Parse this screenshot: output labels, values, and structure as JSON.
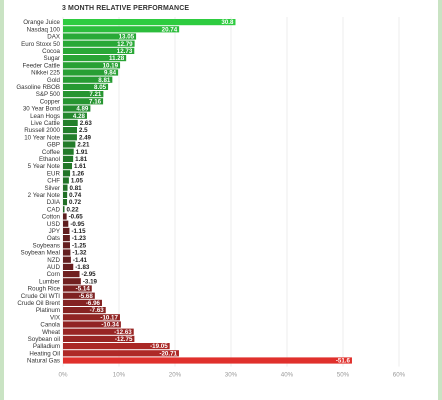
{
  "chart_data": {
    "type": "bar",
    "orientation": "horizontal",
    "title": "3 MONTH RELATIVE PERFORMANCE",
    "categories": [
      "Orange Juice",
      "Nasdaq 100",
      "DAX",
      "Euro Stoxx 50",
      "Cocoa",
      "Sugar",
      "Feeder Cattle",
      "Nikkei 225",
      "Gold",
      "Gasoline RBOB",
      "S&P 500",
      "Copper",
      "30 Year Bond",
      "Lean Hogs",
      "Live Cattle",
      "Russell 2000",
      "10 Year Note",
      "GBP",
      "Coffee",
      "Ethanol",
      "5 Year Note",
      "EUR",
      "CHF",
      "Silver",
      "2 Year Note",
      "DJIA",
      "CAD",
      "Cotton",
      "USD",
      "JPY",
      "Oats",
      "Soybeans",
      "Soybean Meal",
      "NZD",
      "AUD",
      "Corn",
      "Lumber",
      "Rough Rice",
      "Crude Oil WTI",
      "Crude Oil Brent",
      "Platinum",
      "VIX",
      "Canola",
      "Wheat",
      "Soybean oil",
      "Palladium",
      "Heating Oil",
      "Natural Gas"
    ],
    "values": [
      30.8,
      20.74,
      13.05,
      12.79,
      12.73,
      11.28,
      10.19,
      9.84,
      8.81,
      8.05,
      7.21,
      7.16,
      4.89,
      4.28,
      2.63,
      2.5,
      2.49,
      2.21,
      1.91,
      1.81,
      1.61,
      1.26,
      1.05,
      0.81,
      0.74,
      0.72,
      0.22,
      -0.65,
      -0.95,
      -1.15,
      -1.23,
      -1.25,
      -1.32,
      -1.41,
      -1.83,
      -2.95,
      -3.19,
      -5.14,
      -5.68,
      -6.96,
      -7.63,
      -10.17,
      -10.34,
      -12.63,
      -12.75,
      -19.05,
      -20.71,
      -51.6
    ],
    "value_labels": [
      "30.8",
      "20.74",
      "13.05",
      "12.79",
      "12.73",
      "11.28",
      "10.19",
      "9.84",
      "8.81",
      "8.05",
      "7.21",
      "7.16",
      "4.89",
      "4.28",
      "2.63",
      "2.5",
      "2.49",
      "2.21",
      "1.91",
      "1.81",
      "1.61",
      "1.26",
      "1.05",
      "0.81",
      "0.74",
      "0.72",
      "0.22",
      "-0.65",
      "-0.95",
      "-1.15",
      "-1.23",
      "-1.25",
      "-1.32",
      "-1.41",
      "-1.83",
      "-2.95",
      "-3.19",
      "-5.14",
      "-5.68",
      "-6.96",
      "-7.63",
      "-10.17",
      "-10.34",
      "-12.63",
      "-12.75",
      "-19.05",
      "-20.71",
      "-51.6"
    ],
    "xaxis": {
      "ticks": [
        "0%",
        "10%",
        "20%",
        "30%",
        "40%",
        "50%",
        "60%"
      ],
      "scale": "absolute value",
      "range": [
        0,
        60
      ]
    },
    "grid": true,
    "colors": {
      "positive_bright": "#2ecc40",
      "positive_dark": "#1f5d22",
      "negative_dark": "#4a1a1c",
      "negative_bright": "#e0302c",
      "grid": "#e6e6e6"
    }
  }
}
